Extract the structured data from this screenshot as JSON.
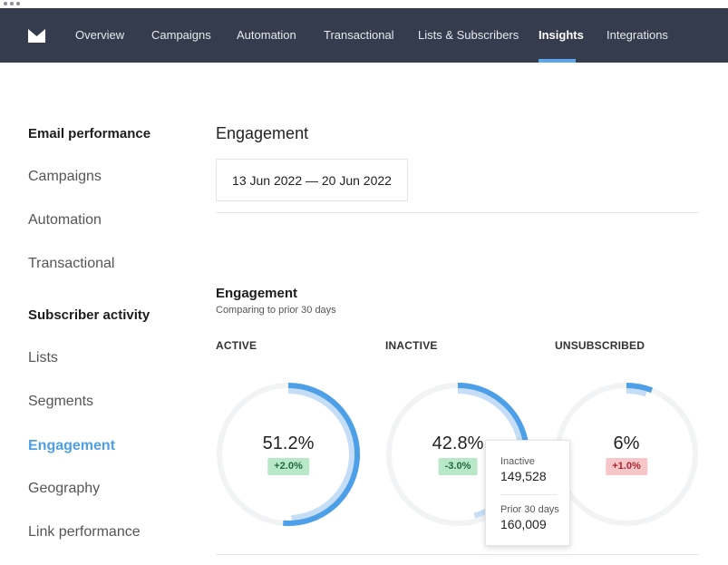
{
  "nav": {
    "items": [
      {
        "label": "Overview"
      },
      {
        "label": "Campaigns"
      },
      {
        "label": "Automation"
      },
      {
        "label": "Transactional"
      },
      {
        "label": "Lists & Subscribers"
      },
      {
        "label": "Insights",
        "active": true
      },
      {
        "label": "Integrations"
      }
    ]
  },
  "sidebar": {
    "email_heading": "Email performance",
    "email_items": [
      "Campaigns",
      "Automation",
      "Transactional"
    ],
    "subscriber_heading": "Subscriber activity",
    "subscriber_items": [
      "Lists",
      "Segments",
      "Engagement",
      "Geography",
      "Link performance"
    ],
    "active_item": "Engagement"
  },
  "main": {
    "page_title": "Engagement",
    "date_range": "13 Jun 2022 — 20 Jun 2022",
    "section_title": "Engagement",
    "section_subtitle": "Comparing to prior 30 days"
  },
  "metrics": [
    {
      "label": "ACTIVE",
      "value": "51.2%",
      "change": "+2.0%",
      "trend": "positive",
      "current_fraction": 0.512,
      "prior_fraction": 0.492
    },
    {
      "label": "INACTIVE",
      "value": "42.8%",
      "change": "-3.0%",
      "trend": "positive",
      "current_fraction": 0.428,
      "prior_fraction": 0.458
    },
    {
      "label": "UNSUBSCRIBED",
      "value": "6%",
      "change": "+1.0%",
      "trend": "negative",
      "current_fraction": 0.06,
      "prior_fraction": 0.05
    }
  ],
  "tooltip": {
    "current_label": "Inactive",
    "current_value": "149,528",
    "prior_label": "Prior 30 days",
    "prior_value": "160,009"
  },
  "colors": {
    "nav_bg": "#343c4d",
    "accent": "#4d9fe8",
    "gauge_current": "#4d9fe8",
    "gauge_prior": "#c5ddf6",
    "gauge_track": "#f1f3f5",
    "positive_bg": "#b9e8c9",
    "negative_bg": "#f6c6c9"
  }
}
